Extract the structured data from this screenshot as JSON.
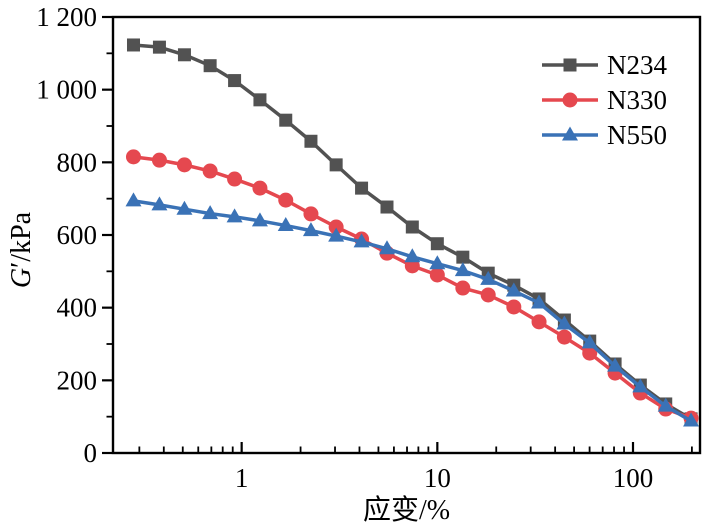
{
  "figure": {
    "description": "Storage modulus vs strain curves for three carbon black filled compounds"
  },
  "chart_data": {
    "type": "line",
    "x_scale": "log",
    "title": "",
    "xlabel": "应变/%",
    "ylabel": "G′/kPa",
    "ylabel_parts": {
      "italic": "G",
      "rest": "′/kPa"
    },
    "xlim": [
      0.22,
      220
    ],
    "ylim": [
      0,
      1200
    ],
    "grid": false,
    "x_major_ticks": [
      1,
      10,
      100
    ],
    "x_major_tick_labels": [
      "1",
      "10",
      "100"
    ],
    "y_major_ticks": [
      0,
      200,
      400,
      600,
      800,
      1000,
      1200
    ],
    "y_major_tick_labels": [
      "0",
      "200",
      "400",
      "600",
      "800",
      "1 000",
      "1 200"
    ],
    "y_minor_ticks": [
      100,
      300,
      500,
      700,
      900,
      1100
    ],
    "legend_position": "top-right-inside",
    "axis_color": "#000000",
    "x": [
      0.28,
      0.38,
      0.51,
      0.69,
      0.92,
      1.24,
      1.68,
      2.26,
      3.04,
      4.1,
      5.53,
      7.45,
      10.0,
      13.5,
      18.2,
      24.6,
      33.1,
      44.6,
      60.1,
      81.0,
      109,
      147,
      198
    ],
    "series": [
      {
        "name": "N234",
        "marker": "square",
        "color": "#525252",
        "values": [
          1123,
          1117,
          1096,
          1066,
          1025,
          972,
          916,
          858,
          793,
          729,
          677,
          622,
          576,
          539,
          495,
          462,
          424,
          366,
          308,
          245,
          187,
          135,
          94
        ]
      },
      {
        "name": "N330",
        "marker": "circle",
        "color": "#e5484f",
        "values": [
          815,
          806,
          793,
          776,
          754,
          729,
          696,
          658,
          622,
          589,
          550,
          515,
          490,
          454,
          435,
          402,
          361,
          319,
          275,
          220,
          165,
          121,
          96
        ]
      },
      {
        "name": "N550",
        "marker": "triangle",
        "color": "#3a72b6",
        "values": [
          694,
          683,
          671,
          659,
          650,
          639,
          626,
          612,
          597,
          581,
          562,
          540,
          521,
          502,
          478,
          446,
          413,
          355,
          303,
          239,
          182,
          129,
          88
        ]
      }
    ]
  }
}
